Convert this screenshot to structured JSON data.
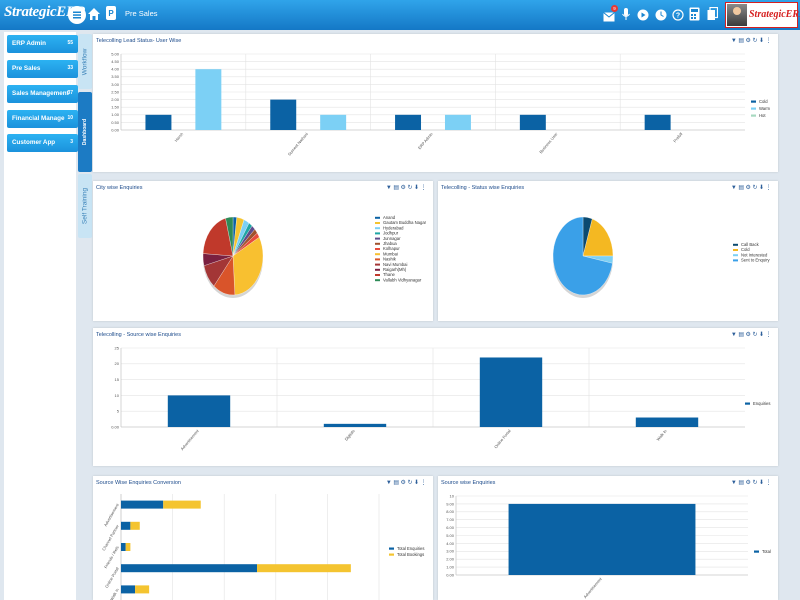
{
  "header": {
    "logo": "StrategicERP",
    "breadcrumb": "Pre Sales",
    "notification_count": "9",
    "profile_brand": "StrategicERP"
  },
  "icons": [
    "menu-icon",
    "home-icon",
    "page-icon",
    "mail-icon",
    "mic-icon",
    "youtube-icon",
    "clock-icon",
    "help-icon",
    "calculator-icon",
    "copy-icon"
  ],
  "sidebar": {
    "items": [
      {
        "label": "ERP Admin",
        "count": "55"
      },
      {
        "label": "Pre Sales",
        "count": "33"
      },
      {
        "label": "Sales Management",
        "count": "37"
      },
      {
        "label": "Financial Manage",
        "count": "10"
      },
      {
        "label": "Customer App",
        "count": "3"
      }
    ]
  },
  "vtabs": {
    "workflow": "Workflow",
    "dashboard": "Dashboard",
    "self_training": "Self Training"
  },
  "panel_icons": [
    "filter-icon",
    "document-icon",
    "settings-icon",
    "refresh-icon",
    "download-icon",
    "more-icon"
  ],
  "panel_icon_glyphs": [
    "▼",
    "▤",
    "⚙",
    "↻",
    "⬇",
    "⋮"
  ],
  "chart_data": [
    {
      "type": "bar",
      "title": "Telecolling Lead Status- User Wise",
      "categories": [
        "Harsh",
        "Sumeet Nathani",
        "ERP Admin",
        "Business User",
        "Prafull"
      ],
      "series": [
        {
          "name": "Cold",
          "color": "#0b62a4",
          "values": [
            1,
            2,
            1,
            1,
            1
          ]
        },
        {
          "name": "Warm",
          "color": "#7cd0f5",
          "values": [
            4,
            1,
            1,
            0,
            0
          ]
        },
        {
          "name": "Hot",
          "color": "#a7d9c0",
          "values": [
            0,
            0,
            0,
            0,
            0
          ]
        }
      ],
      "yticks": [
        "0.00",
        "0.50",
        "1.00",
        "1.50",
        "2.00",
        "2.50",
        "3.00",
        "3.50",
        "4.00",
        "4.50",
        "5.00"
      ],
      "ylim": [
        0,
        5
      ]
    },
    {
      "type": "pie",
      "title": "City wise Enquiries",
      "labels": [
        "Anand",
        "Gautam Buddha Nagar",
        "Hyderabad",
        "Jodhpur",
        "Junnagar",
        "Jhabua",
        "Kolhapur",
        "Mumbai",
        "Nashik",
        "Navi Mumbai",
        "Raigarh(Mh)",
        "Thane",
        "Vallabh Vidhyanagar"
      ],
      "values": [
        2,
        4,
        3,
        2,
        2,
        2,
        2,
        32,
        12,
        10,
        5,
        20,
        4
      ],
      "colors": [
        "#0b62a4",
        "#f4c430",
        "#7cd0f5",
        "#1fa5a5",
        "#5f4b8b",
        "#a0522d",
        "#e74c3c",
        "#f8c030",
        "#d9542a",
        "#a33636",
        "#7a2040",
        "#c0392b",
        "#2e8b57"
      ]
    },
    {
      "type": "pie",
      "title": "Telecolling - Status wise Enquiries",
      "labels": [
        "Call Back",
        "Cold",
        "Not Interested",
        "Sent to Enquiry"
      ],
      "values": [
        5,
        20,
        3,
        72
      ],
      "colors": [
        "#0b4a70",
        "#f4b822",
        "#7cd0f5",
        "#3aa0e8"
      ]
    },
    {
      "type": "bar",
      "title": "Telecolling - Source wise Enquiries",
      "categories": [
        "Advertisement",
        "Digitals",
        "Online Portal",
        "Walk In"
      ],
      "series": [
        {
          "name": "Enquiries",
          "color": "#0b62a4",
          "values": [
            10,
            1,
            22,
            3
          ]
        }
      ],
      "yticks": [
        "0.00",
        "5",
        "10",
        "15",
        "20",
        "25"
      ],
      "ylim": [
        0,
        25
      ]
    },
    {
      "type": "bar",
      "orientation": "horizontal",
      "title": "Source Wise Enquiries Conversion",
      "categories": [
        "Advertisement",
        "Channel Partner",
        "Friends / Refs",
        "Online Portal",
        "Walk In"
      ],
      "series": [
        {
          "name": "Total Enquiries",
          "color": "#0b62a4",
          "values": [
            9,
            2,
            1,
            29,
            3
          ]
        },
        {
          "name": "Total Bookings",
          "color": "#f4c430",
          "values": [
            8,
            2,
            1,
            20,
            3
          ]
        }
      ]
    },
    {
      "type": "bar",
      "title": "Source wise Enquiries",
      "categories": [
        "Advertisement"
      ],
      "series": [
        {
          "name": "Total",
          "color": "#0b62a4",
          "values": [
            9
          ]
        }
      ],
      "yticks": [
        "0.00",
        "1.00",
        "2.00",
        "3.00",
        "4.00",
        "5.00",
        "6.00",
        "7.00",
        "8.00",
        "9.00",
        "10"
      ],
      "ylim": [
        0,
        10
      ]
    }
  ]
}
